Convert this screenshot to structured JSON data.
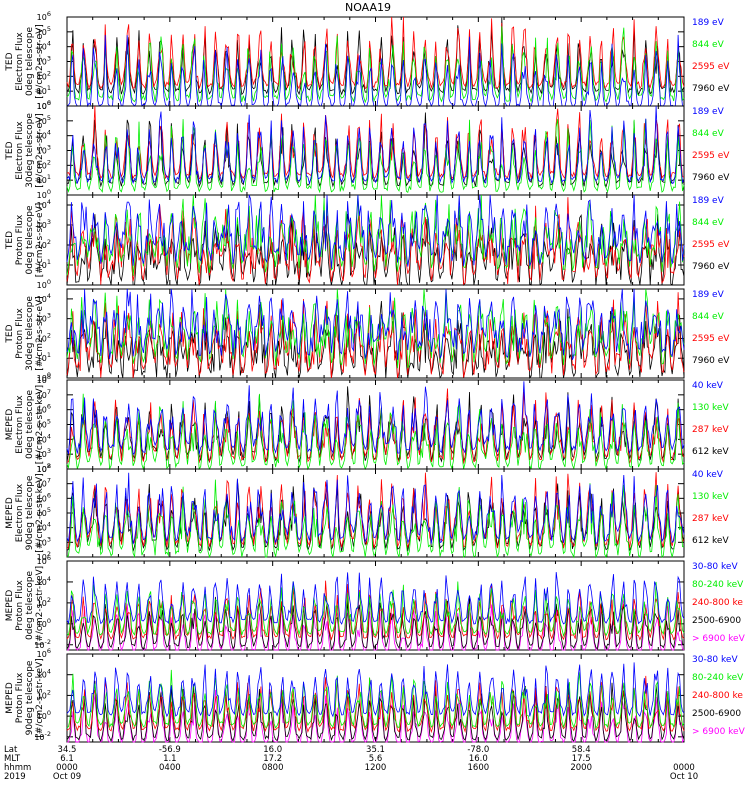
{
  "title": "NOAA19",
  "colors": {
    "black": "#000000",
    "red": "#ff0000",
    "green": "#00ee00",
    "blue": "#0000ff",
    "magenta": "#ff00ff"
  },
  "chart_data": [
    {
      "type": "line",
      "ylabel": [
        "TED",
        "Electron Flux",
        "0deg telescope",
        "[#/cm2-s-str-eV]"
      ],
      "yscale": "log",
      "ylim_exp": [
        0,
        6
      ],
      "tick_exps": [
        0,
        1,
        2,
        3,
        4,
        5,
        6
      ],
      "floor_exp": 1,
      "peak_exp": 4.7,
      "burst_widths": [
        4,
        6,
        8
      ],
      "series": [
        {
          "name": "7960 eV",
          "color": "#000000",
          "offset": 0.0
        },
        {
          "name": "2595 eV",
          "color": "#ff0000",
          "offset": 0.4
        },
        {
          "name": "844 eV",
          "color": "#00ee00",
          "offset": -0.5
        },
        {
          "name": "189 eV",
          "color": "#0000ff",
          "offset": -1.1
        }
      ]
    },
    {
      "type": "line",
      "ylabel": [
        "TED",
        "Electron Flux",
        "30deg telescope",
        "[#/cm2-s-str-eV]"
      ],
      "yscale": "log",
      "ylim_exp": [
        0,
        6
      ],
      "tick_exps": [
        0,
        1,
        2,
        3,
        4,
        5,
        6
      ],
      "floor_exp": 0.8,
      "peak_exp": 4.5,
      "burst_widths": [
        4,
        6,
        8
      ],
      "series": [
        {
          "name": "7960 eV",
          "color": "#000000",
          "offset": 0.0
        },
        {
          "name": "2595 eV",
          "color": "#ff0000",
          "offset": 0.5
        },
        {
          "name": "844 eV",
          "color": "#00ee00",
          "offset": -0.4
        },
        {
          "name": "189 eV",
          "color": "#0000ff",
          "offset": 0.2
        }
      ]
    },
    {
      "type": "line",
      "ylabel": [
        "TED",
        "Proton Flux",
        "0deg telescope",
        "[#/cm2-s-str-eV]"
      ],
      "yscale": "log",
      "ylim_exp": [
        0,
        4.5
      ],
      "tick_exps": [
        0,
        1,
        2,
        3,
        4
      ],
      "floor_exp": 0.6,
      "peak_exp": 3.6,
      "burst_widths": [
        10,
        14,
        18
      ],
      "series": [
        {
          "name": "7960 eV",
          "color": "#000000",
          "offset": -0.9
        },
        {
          "name": "2595 eV",
          "color": "#ff0000",
          "offset": -0.6
        },
        {
          "name": "844 eV",
          "color": "#00ee00",
          "offset": 0.0
        },
        {
          "name": "189 eV",
          "color": "#0000ff",
          "offset": 0.3
        }
      ]
    },
    {
      "type": "line",
      "ylabel": [
        "TED",
        "Proton Flux",
        "30deg telescope",
        "[#/cm2-s-str-eV]"
      ],
      "yscale": "log",
      "ylim_exp": [
        0,
        4.5
      ],
      "tick_exps": [
        0,
        1,
        2,
        3,
        4
      ],
      "floor_exp": 0.6,
      "peak_exp": 3.6,
      "burst_widths": [
        10,
        14,
        18
      ],
      "series": [
        {
          "name": "7960 eV",
          "color": "#000000",
          "offset": -0.9
        },
        {
          "name": "2595 eV",
          "color": "#ff0000",
          "offset": -0.6
        },
        {
          "name": "844 eV",
          "color": "#00ee00",
          "offset": 0.0
        },
        {
          "name": "189 eV",
          "color": "#0000ff",
          "offset": 0.3
        }
      ]
    },
    {
      "type": "line",
      "ylabel": [
        "MEPED",
        "Electron Flux",
        "0deg telescope",
        "[#/cm2-s-str-keV]"
      ],
      "yscale": "log",
      "ylim_exp": [
        2,
        8
      ],
      "tick_exps": [
        2,
        3,
        4,
        5,
        6,
        7,
        8
      ],
      "floor_exp": 2.7,
      "peak_exp": 6.2,
      "burst_widths": [
        6,
        9,
        12
      ],
      "series": [
        {
          "name": "612 keV",
          "color": "#000000",
          "offset": 0.0
        },
        {
          "name": "287 keV",
          "color": "#ff0000",
          "offset": -0.1
        },
        {
          "name": "130 keV",
          "color": "#00ee00",
          "offset": -0.6
        },
        {
          "name": "40 keV",
          "color": "#0000ff",
          "offset": 0.5
        }
      ]
    },
    {
      "type": "line",
      "ylabel": [
        "MEPED",
        "Electron Flux",
        "90deg telescope",
        "[#/cm2-s-str-keV]"
      ],
      "yscale": "log",
      "ylim_exp": [
        2,
        8
      ],
      "tick_exps": [
        2,
        3,
        4,
        5,
        6,
        7,
        8
      ],
      "floor_exp": 2.6,
      "peak_exp": 6.3,
      "burst_widths": [
        6,
        9,
        12
      ],
      "series": [
        {
          "name": "612 keV",
          "color": "#000000",
          "offset": 0.0
        },
        {
          "name": "287 keV",
          "color": "#ff0000",
          "offset": 0.2
        },
        {
          "name": "130 keV",
          "color": "#00ee00",
          "offset": -0.5
        },
        {
          "name": "40 keV",
          "color": "#0000ff",
          "offset": 0.5
        }
      ]
    },
    {
      "type": "line",
      "ylabel": [
        "MEPED",
        "Proton Flux",
        "0deg telescope",
        "[#/cm2-s-str-keV]"
      ],
      "yscale": "log",
      "ylim_exp": [
        -2.5,
        6
      ],
      "tick_exps": [
        -2,
        0,
        2,
        4,
        6
      ],
      "floor_exp": -0.4,
      "peak_exp": 3.6,
      "burst_widths": [
        5,
        7,
        9
      ],
      "series": [
        {
          "name": "> 6900 keV",
          "color": "#ff00ff",
          "offset": -2.3
        },
        {
          "name": "2500-6900",
          "color": "#000000",
          "offset": -1.8
        },
        {
          "name": "240-800 ke",
          "color": "#ff0000",
          "offset": -0.9
        },
        {
          "name": "80-240 keV",
          "color": "#00ee00",
          "offset": -0.5
        },
        {
          "name": "30-80 keV",
          "color": "#0000ff",
          "offset": 0.6
        }
      ]
    },
    {
      "type": "line",
      "ylabel": [
        "MEPED",
        "Proton Flux",
        "90deg telescope",
        "[#/cm2-s-str-keV]"
      ],
      "yscale": "log",
      "ylim_exp": [
        -2.5,
        6
      ],
      "tick_exps": [
        -2,
        0,
        2,
        4,
        6
      ],
      "floor_exp": -0.4,
      "peak_exp": 3.8,
      "burst_widths": [
        5,
        7,
        9
      ],
      "series": [
        {
          "name": "> 6900 keV",
          "color": "#ff00ff",
          "offset": -2.3
        },
        {
          "name": "2500-6900",
          "color": "#000000",
          "offset": -1.8
        },
        {
          "name": "240-800 ke",
          "color": "#ff0000",
          "offset": -0.9
        },
        {
          "name": "80-240 keV",
          "color": "#00ee00",
          "offset": -0.5
        },
        {
          "name": "30-80 keV",
          "color": "#0000ff",
          "offset": 0.6
        }
      ]
    }
  ],
  "xaxis": {
    "row_labels": [
      "Lat",
      "MLT",
      "hhmm",
      "2019"
    ],
    "ticks": [
      {
        "lat": "34.5",
        "mlt": "6.1",
        "hhmm": "0000",
        "date": "Oct 09"
      },
      {
        "lat": "-56.9",
        "mlt": "1.1",
        "hhmm": "0400",
        "date": ""
      },
      {
        "lat": "16.0",
        "mlt": "17.2",
        "hhmm": "0800",
        "date": ""
      },
      {
        "lat": "35.1",
        "mlt": "5.6",
        "hhmm": "1200",
        "date": ""
      },
      {
        "lat": "-78.0",
        "mlt": "16.0",
        "hhmm": "1600",
        "date": ""
      },
      {
        "lat": "58.4",
        "mlt": "17.5",
        "hhmm": "2000",
        "date": ""
      },
      {
        "lat": "",
        "mlt": "",
        "hhmm": "0000",
        "date": "Oct 10"
      }
    ],
    "tick_hours": [
      0,
      4,
      8,
      12,
      16,
      20,
      24
    ],
    "range_hours": [
      0,
      24
    ],
    "orbit_passes": 56
  }
}
